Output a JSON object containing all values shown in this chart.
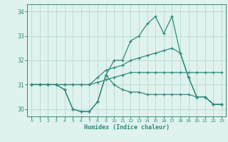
{
  "xlabel": "Humidex (Indice chaleur)",
  "x": [
    0,
    1,
    2,
    3,
    4,
    5,
    6,
    7,
    8,
    9,
    10,
    11,
    12,
    13,
    14,
    15,
    16,
    17,
    18,
    19,
    20,
    21,
    22,
    23
  ],
  "line1": [
    31,
    31,
    31,
    31,
    30.8,
    30,
    29.9,
    29.9,
    30.3,
    31.4,
    31,
    30.8,
    30.7,
    30.7,
    30.6,
    30.6,
    30.6,
    30.6,
    30.6,
    30.6,
    30.5,
    30.5,
    30.2,
    30.2
  ],
  "line2": [
    31,
    31,
    31,
    31,
    30.8,
    30,
    29.9,
    29.9,
    30.3,
    31.4,
    32,
    32,
    32.8,
    33,
    33.5,
    33.8,
    33.1,
    33.8,
    32.3,
    31.3,
    30.5,
    30.5,
    30.2,
    30.2
  ],
  "line3": [
    31,
    31,
    31,
    31,
    31,
    31,
    31,
    31,
    31.3,
    31.6,
    31.7,
    31.8,
    32.0,
    32.1,
    32.2,
    32.3,
    32.4,
    32.5,
    32.3,
    31.3,
    30.5,
    30.5,
    30.2,
    30.2
  ],
  "line4": [
    31,
    31,
    31,
    31,
    31,
    31,
    31,
    31,
    31.1,
    31.2,
    31.3,
    31.4,
    31.5,
    31.5,
    31.5,
    31.5,
    31.5,
    31.5,
    31.5,
    31.5,
    31.5,
    31.5,
    31.5,
    31.5
  ],
  "line_color": "#2e8b7a",
  "bg_color": "#dff2ee",
  "grid_color": "#b8d8d3",
  "ylim": [
    29.7,
    34.3
  ],
  "xlim": [
    -0.5,
    23.5
  ],
  "yticks": [
    30,
    31,
    32,
    33,
    34
  ],
  "xticks": [
    0,
    1,
    2,
    3,
    4,
    5,
    6,
    7,
    8,
    9,
    10,
    11,
    12,
    13,
    14,
    15,
    16,
    17,
    18,
    19,
    20,
    21,
    22,
    23
  ]
}
